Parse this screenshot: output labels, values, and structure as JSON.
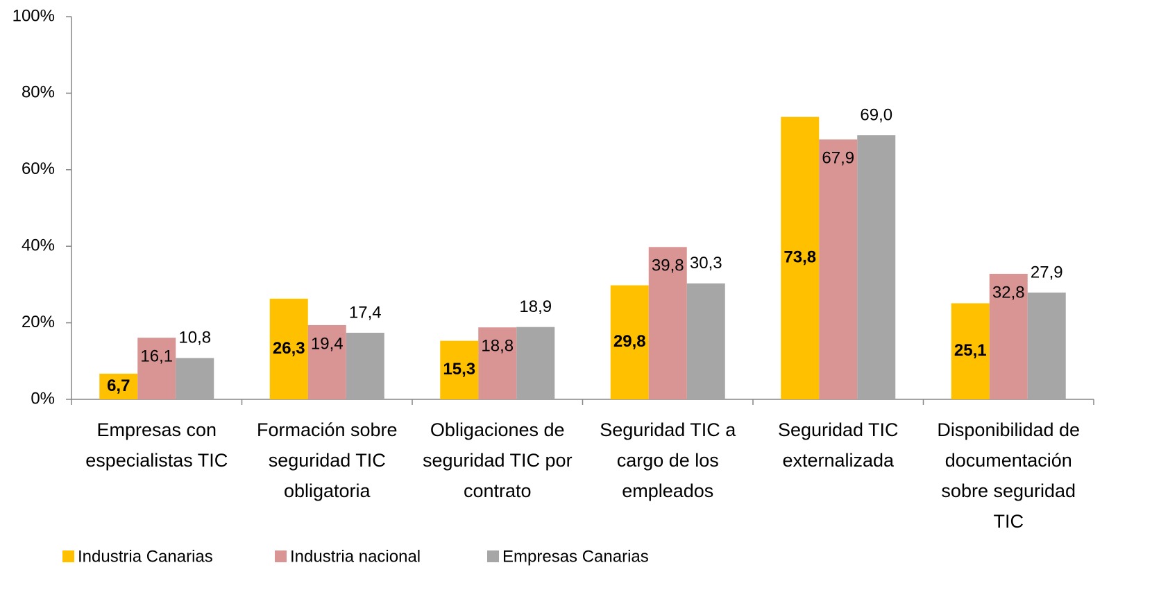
{
  "chart_data": {
    "type": "bar",
    "categories": [
      "Empresas con especialistas TIC",
      "Formación sobre seguridad TIC obligatoria",
      "Obligaciones de seguridad TIC por contrato",
      "Seguridad TIC a cargo de los empleados",
      "Seguridad TIC externalizada",
      "Disponibilidad de documentación sobre seguridad TIC"
    ],
    "series": [
      {
        "name": "Industria Canarias",
        "color": "#ffc000",
        "values": [
          6.7,
          26.3,
          15.3,
          29.8,
          73.8,
          25.1
        ],
        "value_labels": [
          "6,7",
          "26,3",
          "15,3",
          "29,8",
          "73,8",
          "25,1"
        ]
      },
      {
        "name": "Industria nacional",
        "color": "#d99594",
        "values": [
          16.1,
          19.4,
          18.8,
          39.8,
          67.9,
          32.8
        ],
        "value_labels": [
          "16,1",
          "19,4",
          "18,8",
          "39,8",
          "67,9",
          "32,8"
        ]
      },
      {
        "name": "Empresas Canarias",
        "color": "#a6a6a6",
        "values": [
          10.8,
          17.4,
          18.9,
          30.3,
          69.0,
          27.9
        ],
        "value_labels": [
          "10,8",
          "17,4",
          "18,9",
          "30,3",
          "69,0",
          "27,9"
        ]
      }
    ],
    "ylim": [
      0,
      100
    ],
    "yticks": [
      {
        "value": 0,
        "label": "0%"
      },
      {
        "value": 20,
        "label": "20%"
      },
      {
        "value": 40,
        "label": "40%"
      },
      {
        "value": 60,
        "label": "60%"
      },
      {
        "value": 80,
        "label": "80%"
      },
      {
        "value": 100,
        "label": "100%"
      }
    ],
    "grid": false,
    "legend": "bottom"
  }
}
